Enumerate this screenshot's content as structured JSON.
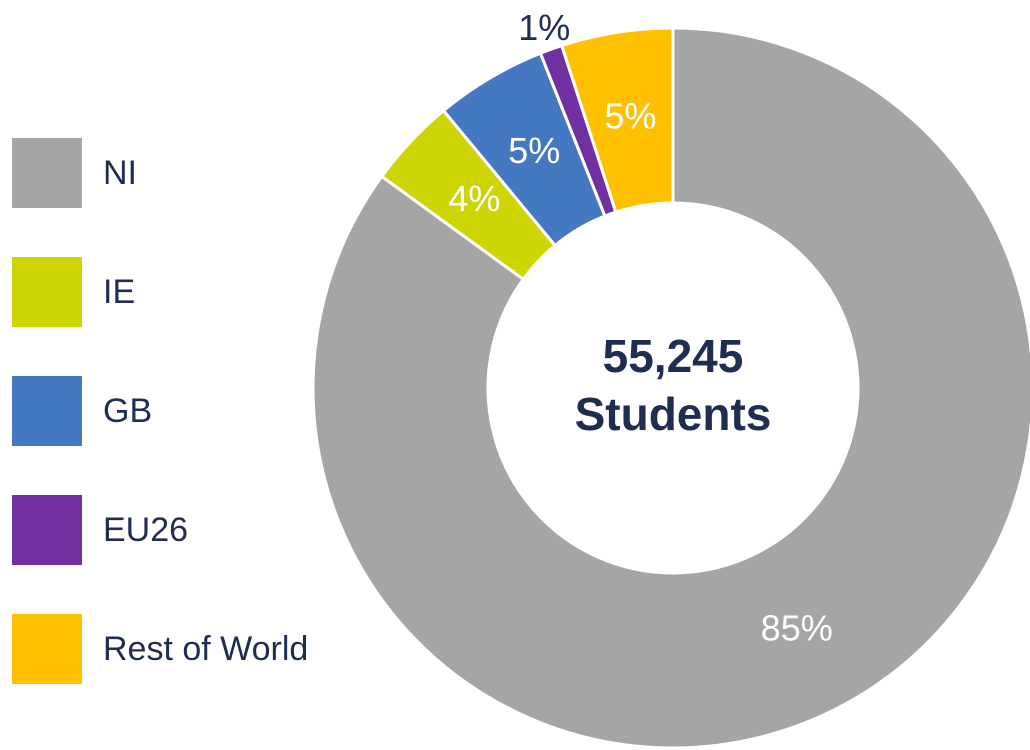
{
  "chart_data": {
    "type": "donut",
    "categories": [
      "NI",
      "IE",
      "GB",
      "EU26",
      "Rest of World"
    ],
    "values": [
      85,
      4,
      5,
      1,
      5
    ],
    "value_labels": [
      "85%",
      "4%",
      "5%",
      "1%",
      "5%"
    ],
    "colors": [
      "#a5a5a5",
      "#cdd505",
      "#4478c0",
      "#7030a0",
      "#ffc000"
    ],
    "center_text": [
      "55,245",
      "Students"
    ],
    "legend": "left"
  }
}
